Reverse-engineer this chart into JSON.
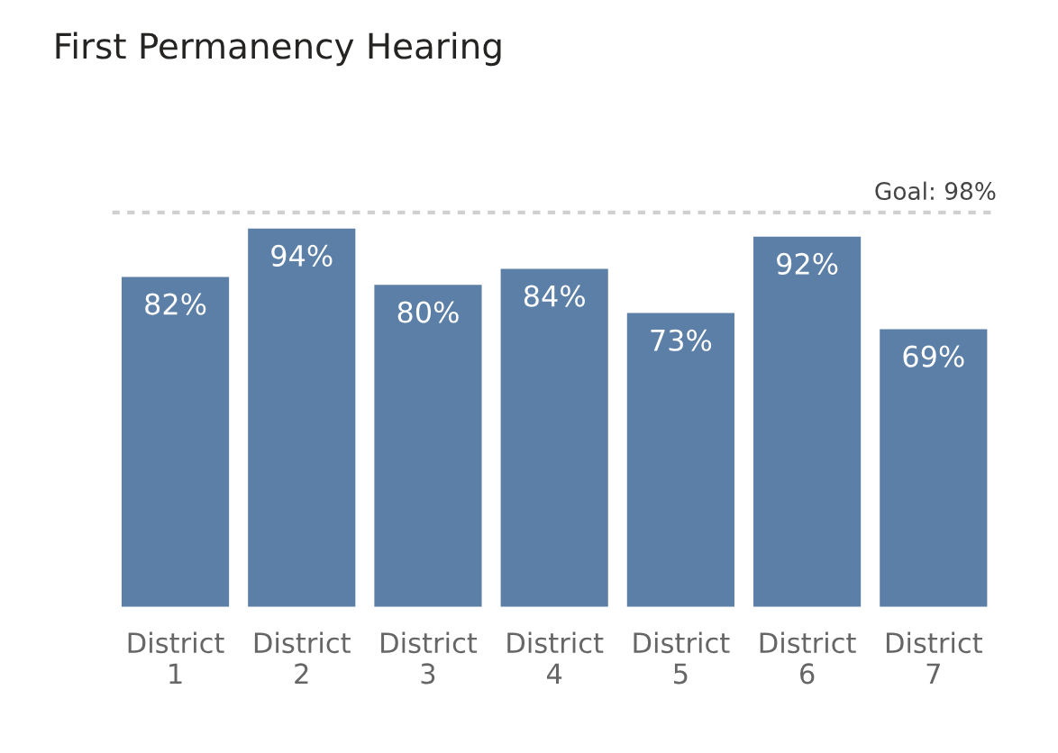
{
  "chart_data": {
    "type": "bar",
    "title": "First Permanency Hearing",
    "categories": [
      "District\n1",
      "District\n2",
      "District\n3",
      "District\n4",
      "District\n5",
      "District\n6",
      "District\n7"
    ],
    "values": [
      82,
      94,
      80,
      84,
      73,
      92,
      69
    ],
    "value_labels": [
      "82%",
      "94%",
      "80%",
      "84%",
      "73%",
      "92%",
      "69%"
    ],
    "color": "#5b7fa6",
    "grid": false,
    "legend": false,
    "ref_lines": [
      {
        "axis": "y",
        "value": 98,
        "label": "Goal: 98%",
        "color": "#d0d0d0",
        "line_style": "dotted"
      }
    ]
  }
}
